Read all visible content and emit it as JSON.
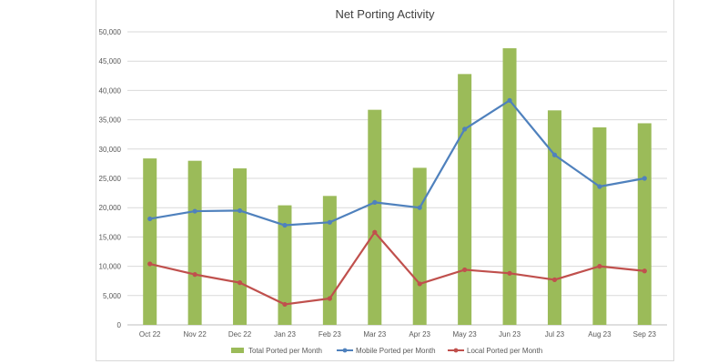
{
  "chart_data": {
    "type": "bar",
    "title": "Net Porting Activity",
    "categories": [
      "Oct 22",
      "Nov 22",
      "Dec 22",
      "Jan 23",
      "Feb 23",
      "Mar 23",
      "Apr 23",
      "May 23",
      "Jun 23",
      "Jul 23",
      "Aug 23",
      "Sep 23"
    ],
    "series": [
      {
        "name": "Total Ported per Month",
        "kind": "bar",
        "color": "#9bbb59",
        "values": [
          28400,
          28000,
          26700,
          20400,
          22000,
          36700,
          26800,
          42800,
          47200,
          36600,
          33700,
          34400
        ]
      },
      {
        "name": "Mobile Ported per Month",
        "kind": "line",
        "color": "#4f81bd",
        "values": [
          18100,
          19400,
          19500,
          17000,
          17500,
          20900,
          20000,
          33400,
          38300,
          29000,
          23600,
          25000
        ]
      },
      {
        "name": "Local Ported per Month",
        "kind": "line",
        "color": "#c0504d",
        "values": [
          10400,
          8600,
          7200,
          3500,
          4500,
          15800,
          7000,
          9400,
          8800,
          7700,
          10000,
          9200
        ]
      }
    ],
    "ylim": [
      0,
      50000
    ],
    "yticks": [
      "0",
      "5,000",
      "10,000",
      "15,000",
      "20,000",
      "25,000",
      "30,000",
      "35,000",
      "40,000",
      "45,000",
      "50,000"
    ],
    "grid": true,
    "legend_position": "bottom"
  }
}
